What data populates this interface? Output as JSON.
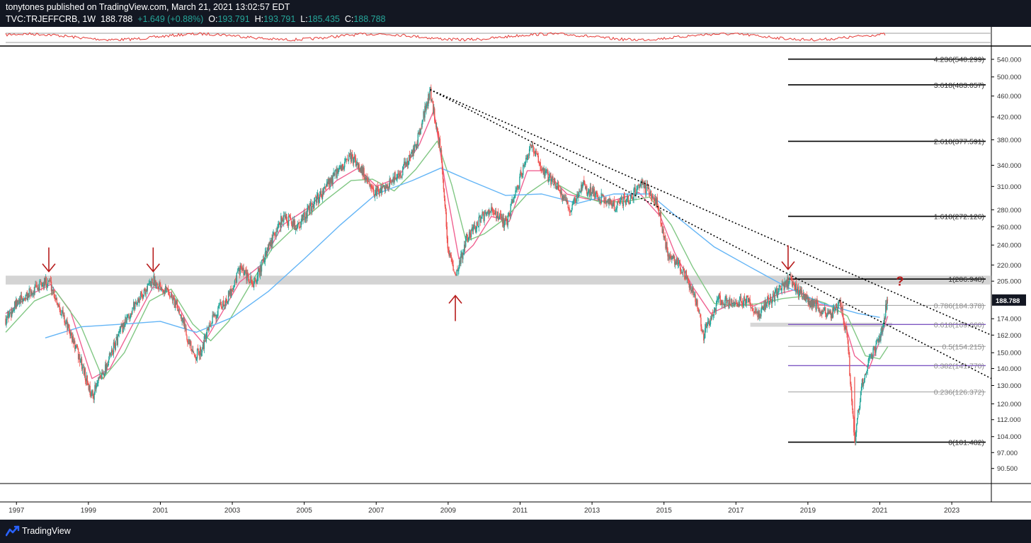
{
  "header": {
    "author": "tonytones",
    "published": "published on TradingView.com, March 21, 2021 13:02:57 EDT",
    "symbol": "TVC:TRJEFFCRB, 1W",
    "last": "188.788",
    "change": "+1.649 (+0.88%)",
    "o_label": "O:",
    "o": "193.791",
    "h_label": "H:",
    "h": "193.791",
    "l_label": "L:",
    "l": "185.435",
    "c_label": "C:",
    "c": "188.788"
  },
  "footer": {
    "brand": "TradingView"
  },
  "colors": {
    "bg_dark": "#131722",
    "price_up": "#26a69a",
    "price_down": "#ef5350",
    "ma_fast": "#f06292",
    "ma_mid": "#81c784",
    "ma_slow": "#64b5f6",
    "arrow": "#b71c1c",
    "fib_level": "#9e9e9e",
    "fib_key": "#7e57c2",
    "indicator": "#e53935"
  },
  "chart_data": {
    "type": "line",
    "title": "",
    "xlabel": "",
    "ylabel": "",
    "y_scale": "log",
    "ylim": [
      85,
      560
    ],
    "xlim": [
      1996.7,
      2024.1
    ],
    "grid": false,
    "x_ticks": [
      "1997",
      "1999",
      "2001",
      "2003",
      "2005",
      "2007",
      "2009",
      "2011",
      "2013",
      "2015",
      "2017",
      "2019",
      "2021",
      "2023"
    ],
    "y_ticks": [
      "540.000",
      "500.000",
      "460.000",
      "420.000",
      "380.000",
      "340.000",
      "310.000",
      "280.000",
      "260.000",
      "240.000",
      "220.000",
      "205.000",
      "188.788",
      "174.000",
      "162.000",
      "150.000",
      "140.000",
      "130.000",
      "120.000",
      "112.000",
      "104.000",
      "97.000",
      "90.500"
    ],
    "last_price": {
      "value": 188.788,
      "label": "188.788"
    },
    "price_path": [
      [
        1996.7,
        174
      ],
      [
        1997.0,
        185
      ],
      [
        1997.4,
        195
      ],
      [
        1997.9,
        206
      ],
      [
        1998.3,
        176
      ],
      [
        1998.7,
        150
      ],
      [
        1999.1,
        124
      ],
      [
        1999.5,
        142
      ],
      [
        1999.9,
        165
      ],
      [
        2000.3,
        186
      ],
      [
        2000.8,
        206
      ],
      [
        2001.2,
        197
      ],
      [
        2001.6,
        176
      ],
      [
        2001.9,
        148
      ],
      [
        2002.1,
        150
      ],
      [
        2002.5,
        176
      ],
      [
        2002.9,
        192
      ],
      [
        2003.2,
        216
      ],
      [
        2003.6,
        202
      ],
      [
        2004.0,
        236
      ],
      [
        2004.4,
        272
      ],
      [
        2004.8,
        260
      ],
      [
        2005.3,
        290
      ],
      [
        2005.8,
        322
      ],
      [
        2006.3,
        352
      ],
      [
        2006.6,
        334
      ],
      [
        2006.9,
        300
      ],
      [
        2007.3,
        312
      ],
      [
        2007.7,
        330
      ],
      [
        2008.1,
        370
      ],
      [
        2008.5,
        470
      ],
      [
        2008.8,
        360
      ],
      [
        2009.0,
        236
      ],
      [
        2009.2,
        206
      ],
      [
        2009.5,
        246
      ],
      [
        2009.9,
        270
      ],
      [
        2010.3,
        278
      ],
      [
        2010.6,
        262
      ],
      [
        2011.0,
        322
      ],
      [
        2011.3,
        368
      ],
      [
        2011.7,
        328
      ],
      [
        2012.0,
        312
      ],
      [
        2012.4,
        278
      ],
      [
        2012.7,
        312
      ],
      [
        2013.1,
        298
      ],
      [
        2013.6,
        285
      ],
      [
        2014.0,
        292
      ],
      [
        2014.4,
        314
      ],
      [
        2014.8,
        290
      ],
      [
        2015.1,
        232
      ],
      [
        2015.5,
        218
      ],
      [
        2015.9,
        188
      ],
      [
        2016.1,
        162
      ],
      [
        2016.5,
        190
      ],
      [
        2016.9,
        186
      ],
      [
        2017.3,
        190
      ],
      [
        2017.6,
        176
      ],
      [
        2017.9,
        188
      ],
      [
        2018.3,
        200
      ],
      [
        2018.5,
        206
      ],
      [
        2018.9,
        190
      ],
      [
        2019.2,
        186
      ],
      [
        2019.6,
        176
      ],
      [
        2019.9,
        186
      ],
      [
        2020.1,
        160
      ],
      [
        2020.3,
        101.5
      ],
      [
        2020.5,
        132
      ],
      [
        2020.8,
        150
      ],
      [
        2021.0,
        160
      ],
      [
        2021.22,
        188.8
      ]
    ],
    "series": [
      {
        "values": [
          [
            1996.7,
            178
          ],
          [
            1997.5,
            195
          ],
          [
            1997.95,
            202
          ],
          [
            1998.5,
            180
          ],
          [
            1999.1,
            134
          ],
          [
            1999.6,
            140
          ],
          [
            2000.2,
            168
          ],
          [
            2000.8,
            200
          ],
          [
            2001.3,
            195
          ],
          [
            2001.8,
            168
          ],
          [
            2002.2,
            156
          ],
          [
            2002.7,
            178
          ],
          [
            2003.2,
            204
          ],
          [
            2003.8,
            220
          ],
          [
            2004.4,
            262
          ],
          [
            2005.1,
            282
          ],
          [
            2005.9,
            318
          ],
          [
            2006.5,
            336
          ],
          [
            2007.0,
            310
          ],
          [
            2007.6,
            322
          ],
          [
            2008.2,
            372
          ],
          [
            2008.6,
            432
          ],
          [
            2008.9,
            320
          ],
          [
            2009.3,
            226
          ],
          [
            2009.7,
            240
          ],
          [
            2010.2,
            272
          ],
          [
            2010.7,
            266
          ],
          [
            2011.2,
            332
          ],
          [
            2011.7,
            332
          ],
          [
            2012.3,
            300
          ],
          [
            2012.8,
            294
          ],
          [
            2013.5,
            290
          ],
          [
            2014.3,
            302
          ],
          [
            2014.9,
            272
          ],
          [
            2015.3,
            232
          ],
          [
            2015.8,
            200
          ],
          [
            2016.3,
            178
          ],
          [
            2016.9,
            186
          ],
          [
            2017.5,
            184
          ],
          [
            2018.2,
            194
          ],
          [
            2018.7,
            198
          ],
          [
            2019.2,
            186
          ],
          [
            2019.9,
            182
          ],
          [
            2020.3,
            148
          ],
          [
            2020.7,
            140
          ],
          [
            2021.0,
            158
          ],
          [
            2021.22,
            176
          ]
        ]
      },
      {
        "values": [
          [
            1996.7,
            164
          ],
          [
            1997.5,
            188
          ],
          [
            1998.1,
            196
          ],
          [
            1998.8,
            168
          ],
          [
            1999.4,
            134
          ],
          [
            2000.0,
            150
          ],
          [
            2000.7,
            188
          ],
          [
            2001.3,
            198
          ],
          [
            2001.9,
            170
          ],
          [
            2002.4,
            158
          ],
          [
            2002.9,
            172
          ],
          [
            2003.5,
            202
          ],
          [
            2004.1,
            236
          ],
          [
            2004.8,
            262
          ],
          [
            2005.6,
            292
          ],
          [
            2006.3,
            318
          ],
          [
            2006.9,
            320
          ],
          [
            2007.5,
            304
          ],
          [
            2008.1,
            334
          ],
          [
            2008.7,
            378
          ],
          [
            2009.1,
            312
          ],
          [
            2009.5,
            244
          ],
          [
            2010.0,
            252
          ],
          [
            2010.6,
            270
          ],
          [
            2011.2,
            300
          ],
          [
            2011.8,
            320
          ],
          [
            2012.5,
            300
          ],
          [
            2013.2,
            290
          ],
          [
            2013.9,
            290
          ],
          [
            2014.6,
            296
          ],
          [
            2015.2,
            262
          ],
          [
            2015.8,
            218
          ],
          [
            2016.4,
            186
          ],
          [
            2017.0,
            184
          ],
          [
            2017.7,
            186
          ],
          [
            2018.3,
            190
          ],
          [
            2018.9,
            192
          ],
          [
            2019.5,
            186
          ],
          [
            2020.1,
            176
          ],
          [
            2020.6,
            148
          ],
          [
            2021.0,
            146
          ],
          [
            2021.22,
            154
          ]
        ]
      },
      {
        "values": [
          [
            1997.8,
            160
          ],
          [
            1998.8,
            168
          ],
          [
            2000.0,
            170
          ],
          [
            2001.0,
            172
          ],
          [
            2002.0,
            164
          ],
          [
            2003.0,
            175
          ],
          [
            2004.0,
            196
          ],
          [
            2005.0,
            226
          ],
          [
            2006.0,
            262
          ],
          [
            2007.0,
            300
          ],
          [
            2008.0,
            318
          ],
          [
            2008.8,
            336
          ],
          [
            2009.6,
            318
          ],
          [
            2010.6,
            298
          ],
          [
            2011.6,
            300
          ],
          [
            2012.6,
            288
          ],
          [
            2013.6,
            300
          ],
          [
            2014.6,
            300
          ],
          [
            2015.4,
            270
          ],
          [
            2016.4,
            238
          ],
          [
            2017.4,
            218
          ],
          [
            2018.4,
            200
          ],
          [
            2019.4,
            186
          ],
          [
            2020.4,
            178
          ],
          [
            2021.0,
            175
          ]
        ]
      }
    ],
    "trendlines": [
      {
        "style": "dotted",
        "from": [
          2008.5,
          473
        ],
        "to": [
          2024.1,
          162
        ]
      },
      {
        "style": "dotted",
        "from": [
          2008.5,
          473
        ],
        "to": [
          2024.1,
          134
        ]
      }
    ],
    "resistance_zone": {
      "from": 202,
      "to": 210
    },
    "support_zone": {
      "from": 2017.4,
      "low": 168,
      "high": 171
    },
    "fib_levels": [
      {
        "label": "4.236(540.299)",
        "value": 540.3,
        "style": "key"
      },
      {
        "label": "3.618(483.057)",
        "value": 483.1,
        "style": "key"
      },
      {
        "label": "2.618(377.591)",
        "value": 377.6,
        "style": "key"
      },
      {
        "label": "1.618(272.126)",
        "value": 272.1,
        "style": "key"
      },
      {
        "label": "1(206.948)",
        "value": 206.9,
        "style": "key"
      },
      {
        "label": "0.786(184.378)",
        "value": 184.4,
        "style": "minor"
      },
      {
        "label": "0.618(169.660)",
        "value": 169.7,
        "style": "purple"
      },
      {
        "label": "0.5(154.215)",
        "value": 154.2,
        "style": "minor"
      },
      {
        "label": "0.382(141.770)",
        "value": 141.8,
        "style": "purple"
      },
      {
        "label": "0.236(126.372)",
        "value": 126.4,
        "style": "minor"
      },
      {
        "label": "0(101.482)",
        "value": 101.5,
        "style": "key"
      }
    ],
    "fib_start_x": 2018.45,
    "annotations": [
      {
        "type": "arrow-down",
        "x": 1997.9,
        "y": 206
      },
      {
        "type": "arrow-down",
        "x": 2000.8,
        "y": 206
      },
      {
        "type": "arrow-up",
        "x": 2009.2,
        "y": 201
      },
      {
        "type": "arrow-down",
        "x": 2018.45,
        "y": 208
      },
      {
        "type": "text",
        "x": 2021.45,
        "y": 201,
        "text": "?"
      }
    ]
  }
}
